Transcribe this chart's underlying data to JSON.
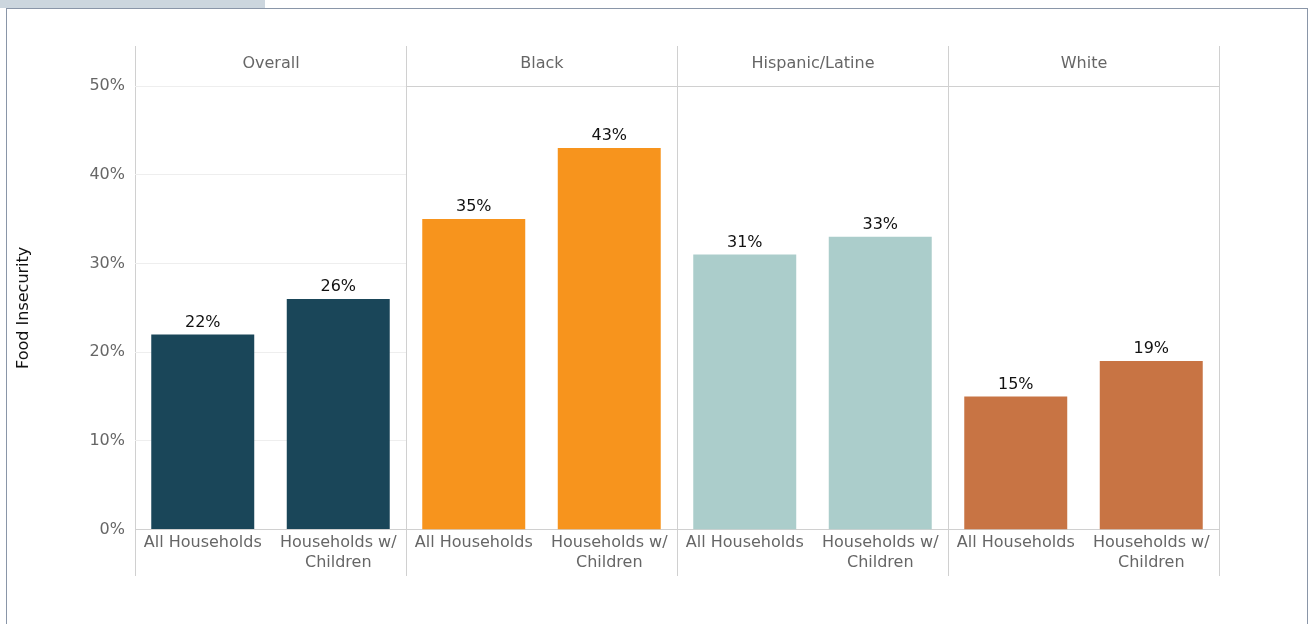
{
  "chart_data": [
    {
      "type": "bar",
      "title": "Overall",
      "ylabel": "Food Insecurity",
      "categories": [
        "All Households",
        "Households w/ Children"
      ],
      "values": [
        22,
        26
      ],
      "value_labels": [
        "22%",
        "26%"
      ],
      "color": "#1a4659",
      "ylim": [
        0,
        50
      ],
      "yticks": [
        {
          "value": 0,
          "label": "0%"
        },
        {
          "value": 10,
          "label": "10%"
        },
        {
          "value": 20,
          "label": "20%"
        },
        {
          "value": 30,
          "label": "30%"
        },
        {
          "value": 40,
          "label": "40%"
        },
        {
          "value": 50,
          "label": "50%"
        }
      ],
      "grid": "y"
    },
    {
      "type": "bar",
      "title": "Black",
      "categories": [
        "All Households",
        "Households w/ Children"
      ],
      "values": [
        35,
        43
      ],
      "value_labels": [
        "35%",
        "43%"
      ],
      "color": "#f7941d",
      "ylim": [
        0,
        50
      ],
      "yticks": [
        {
          "value": 0,
          "label": null
        },
        {
          "value": 10,
          "label": null
        },
        {
          "value": 20,
          "label": null
        },
        {
          "value": 30,
          "label": null
        },
        {
          "value": 40,
          "label": null
        },
        {
          "value": 50,
          "label": null
        }
      ],
      "grid": "y",
      "tick_labels": "x"
    },
    {
      "type": "bar",
      "title": "Hispanic/Latine",
      "categories": [
        "All Households",
        "Households w/ Children"
      ],
      "values": [
        31,
        33
      ],
      "value_labels": [
        "31%",
        "33%"
      ],
      "color": "#abcdcb",
      "ylim": [
        0,
        50
      ],
      "yticks": [
        {
          "value": 0,
          "label": null
        },
        {
          "value": 10,
          "label": null
        },
        {
          "value": 20,
          "label": null
        },
        {
          "value": 30,
          "label": null
        },
        {
          "value": 40,
          "label": null
        },
        {
          "value": 50,
          "label": null
        }
      ],
      "grid": "y",
      "tick_labels": "x"
    },
    {
      "type": "bar",
      "title": "White",
      "categories": [
        "All Households",
        "Households w/ Children"
      ],
      "values": [
        15,
        19
      ],
      "value_labels": [
        "15%",
        "19%"
      ],
      "color": "#c87444",
      "ylim": [
        0,
        50
      ],
      "yticks": [
        {
          "value": 0,
          "label": null
        },
        {
          "value": 10,
          "label": null
        },
        {
          "value": 20,
          "label": null
        },
        {
          "value": 30,
          "label": null
        },
        {
          "value": 40,
          "label": null
        },
        {
          "value": 50,
          "label": null
        }
      ],
      "grid": "y",
      "tick_labels": "x"
    }
  ]
}
